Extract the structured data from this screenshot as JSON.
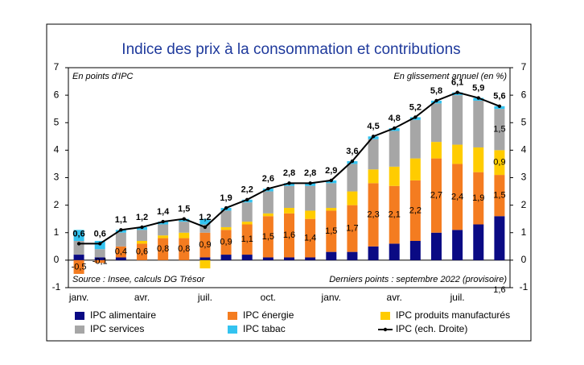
{
  "chart_data": {
    "type": "stacked_bar_line",
    "title": "Indice des prix à la consommation et contributions",
    "y_label": "En points d'IPC",
    "y2_label": "En glissement annuel (en %)",
    "source": "Source : Insee, calculs DG Trésor",
    "note": "Derniers points : septembre 2022 (provisoire)",
    "categories": [
      "janv.",
      null,
      null,
      "avr.",
      null,
      null,
      "juil.",
      null,
      null,
      "oct.",
      null,
      null,
      "janv.",
      null,
      null,
      "avr.",
      null,
      null,
      "juil.",
      null,
      null
    ],
    "series": [
      {
        "name": "IPC alimentaire",
        "color": "#0a0a84",
        "values": [
          0.2,
          0.1,
          0.1,
          0.0,
          0.0,
          0.0,
          0.1,
          0.2,
          0.2,
          0.1,
          0.1,
          0.1,
          0.3,
          0.3,
          0.5,
          0.6,
          0.7,
          1.0,
          1.1,
          1.3,
          1.6
        ],
        "value_labels": [
          null,
          null,
          null,
          null,
          null,
          null,
          null,
          null,
          null,
          null,
          null,
          null,
          null,
          null,
          null,
          null,
          null,
          null,
          null,
          null,
          "1,6"
        ]
      },
      {
        "name": "IPC énergie",
        "color": "#f47c20",
        "values": [
          -0.5,
          -0.1,
          0.4,
          0.6,
          0.8,
          0.8,
          0.9,
          0.9,
          1.1,
          1.5,
          1.6,
          1.4,
          1.5,
          1.7,
          2.3,
          2.1,
          2.2,
          2.7,
          2.4,
          1.9,
          1.5
        ],
        "value_labels": [
          "-0,5",
          "-0,1",
          "0,4",
          "0,6",
          "0,8",
          "0,8",
          "0,9",
          "0,9",
          "1,1",
          "1,5",
          "1,6",
          "1,4",
          "1,5",
          "1,7",
          "2,3",
          "2,1",
          "2,2",
          "2,7",
          "2,4",
          "1,9",
          "1,5"
        ]
      },
      {
        "name": "IPC produits manufacturés",
        "color": "#ffcc00",
        "values": [
          0.0,
          0.0,
          0.0,
          0.1,
          0.1,
          0.2,
          -0.3,
          0.1,
          0.1,
          0.1,
          0.2,
          0.3,
          0.1,
          0.5,
          0.5,
          0.7,
          0.8,
          0.6,
          0.7,
          0.9,
          0.9
        ],
        "value_labels": [
          null,
          null,
          null,
          null,
          null,
          null,
          null,
          null,
          null,
          null,
          null,
          null,
          null,
          null,
          null,
          null,
          null,
          null,
          null,
          null,
          "0,9"
        ]
      },
      {
        "name": "IPC services",
        "color": "#a6a6a6",
        "values": [
          0.5,
          0.3,
          0.5,
          0.4,
          0.4,
          0.4,
          0.3,
          0.6,
          0.7,
          0.8,
          0.8,
          0.9,
          0.9,
          1.0,
          1.1,
          1.3,
          1.4,
          1.4,
          1.8,
          1.7,
          1.5
        ],
        "value_labels": [
          null,
          null,
          null,
          null,
          null,
          null,
          null,
          null,
          null,
          null,
          null,
          null,
          null,
          null,
          null,
          null,
          null,
          null,
          null,
          null,
          "1,5"
        ]
      },
      {
        "name": "IPC tabac",
        "color": "#33c3f0",
        "values": [
          0.4,
          0.3,
          0.1,
          0.1,
          0.1,
          0.1,
          0.2,
          0.1,
          0.1,
          0.1,
          0.1,
          0.1,
          0.1,
          0.1,
          0.1,
          0.1,
          0.1,
          0.1,
          0.1,
          0.1,
          0.1
        ]
      },
      {
        "name": "IPC (ech. Droite)",
        "color": "#000000",
        "kind": "line",
        "axis": "y2",
        "values": [
          0.6,
          0.6,
          1.1,
          1.2,
          1.4,
          1.5,
          1.2,
          1.9,
          2.2,
          2.6,
          2.8,
          2.8,
          2.9,
          3.6,
          4.5,
          4.8,
          5.2,
          5.8,
          6.1,
          5.9,
          5.6
        ],
        "value_labels": [
          "0,6",
          "0,6",
          "1,1",
          "1,2",
          "1,4",
          "1,5",
          "1,2",
          "1,9",
          "2,2",
          "2,6",
          "2,8",
          "2,8",
          "2,9",
          "3,6",
          "4,5",
          "4,8",
          "5,2",
          "5,8",
          "6,1",
          "5,9",
          "5,6"
        ]
      }
    ],
    "ylim": [
      -1,
      7
    ],
    "yticks": [
      -1,
      0,
      1,
      2,
      3,
      4,
      5,
      6,
      7
    ],
    "y2lim": [
      -1,
      7
    ],
    "y2ticks": [
      -1,
      0,
      1,
      2,
      3,
      4,
      5,
      6,
      7
    ]
  }
}
